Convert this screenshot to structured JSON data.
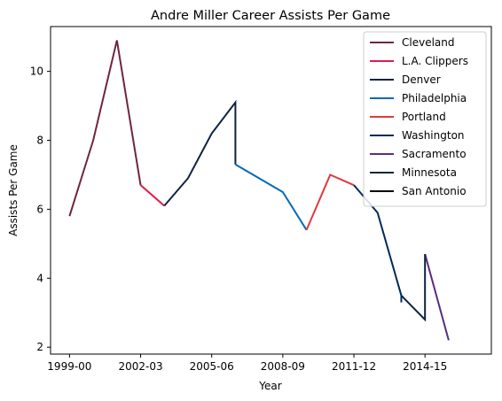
{
  "chart_data": {
    "type": "line",
    "title": "Andre Miller Career Assists Per Game",
    "xlabel": "Year",
    "ylabel": "Assists Per Game",
    "xlim": [
      -0.8,
      17.8
    ],
    "ylim": [
      1.8,
      11.3
    ],
    "x_ticks": [
      {
        "pos": 0,
        "label": "1999-00"
      },
      {
        "pos": 3,
        "label": "2002-03"
      },
      {
        "pos": 6,
        "label": "2005-06"
      },
      {
        "pos": 9,
        "label": "2008-09"
      },
      {
        "pos": 12,
        "label": "2011-12"
      },
      {
        "pos": 15,
        "label": "2014-15"
      }
    ],
    "y_ticks": [
      2,
      4,
      6,
      8,
      10
    ],
    "grid": false,
    "legend_position": "top-right",
    "series": [
      {
        "name": "Cleveland",
        "color": "#6f263d",
        "x": [
          0,
          1,
          2,
          3
        ],
        "y": [
          5.8,
          8.0,
          10.9,
          6.7
        ]
      },
      {
        "name": "L.A. Clippers",
        "color": "#e3194b",
        "x": [
          3,
          4
        ],
        "y": [
          6.7,
          6.1
        ]
      },
      {
        "name": "Denver",
        "color": "#0e2240",
        "x": [
          4,
          5,
          6,
          7,
          7
        ],
        "y": [
          6.1,
          6.9,
          8.2,
          9.1,
          7.3
        ]
      },
      {
        "name": "Philadelphia",
        "color": "#006bb6",
        "x": [
          7,
          8,
          9,
          10
        ],
        "y": [
          7.3,
          6.9,
          6.5,
          5.4
        ]
      },
      {
        "name": "Portland",
        "color": "#e03a3e",
        "x": [
          10,
          11,
          12
        ],
        "y": [
          5.4,
          7.0,
          6.7
        ]
      },
      {
        "name": "Washington",
        "color": "#002b5c",
        "x": [
          12,
          13,
          14,
          14
        ],
        "y": [
          6.7,
          5.9,
          3.5,
          3.3
        ]
      },
      {
        "name": "Sacramento",
        "color": "#5a2d81",
        "x": [
          15,
          16
        ],
        "y": [
          4.7,
          2.2
        ]
      },
      {
        "name": "Minnesota",
        "color": "#0c2340",
        "x": [
          14,
          15,
          15
        ],
        "y": [
          3.5,
          2.8,
          4.7
        ]
      },
      {
        "name": "San Antonio",
        "color": "#000000",
        "x": [],
        "y": []
      }
    ]
  }
}
